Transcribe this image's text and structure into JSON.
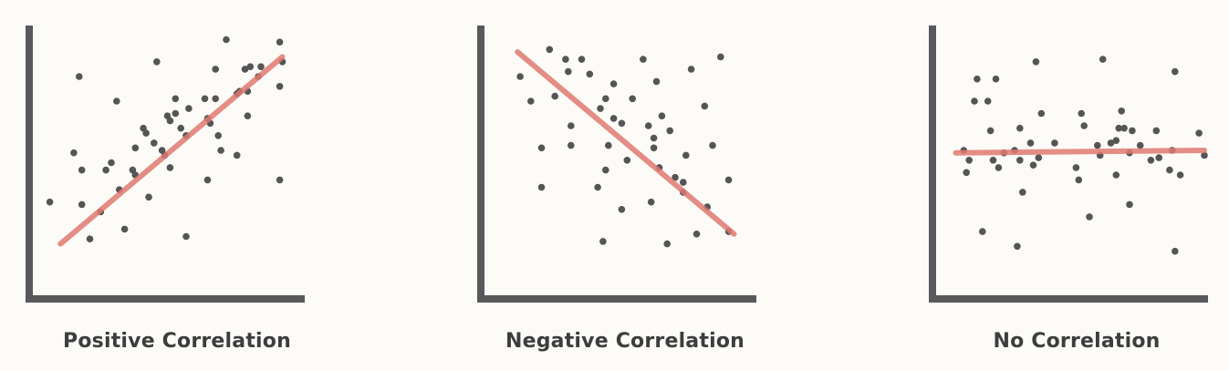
{
  "chart_data": [
    {
      "type": "scatter",
      "title": "Positive Correlation",
      "xlim": [
        0,
        100
      ],
      "ylim": [
        0,
        100
      ],
      "grid": false,
      "axes_color": "#58595b",
      "point_color": "#555555",
      "trend_color": "#e07a72",
      "trend_line": {
        "x": [
          10,
          93
        ],
        "y": [
          12,
          88
        ]
      },
      "points": [
        [
          6,
          29
        ],
        [
          17,
          80
        ],
        [
          15,
          49
        ],
        [
          18,
          42
        ],
        [
          18,
          28
        ],
        [
          21,
          14
        ],
        [
          25,
          25
        ],
        [
          27,
          42
        ],
        [
          29,
          45
        ],
        [
          31,
          70
        ],
        [
          32,
          34
        ],
        [
          34,
          18
        ],
        [
          37,
          42
        ],
        [
          38,
          51
        ],
        [
          38,
          40
        ],
        [
          41,
          59
        ],
        [
          42,
          57
        ],
        [
          43,
          31
        ],
        [
          45,
          53
        ],
        [
          46,
          86
        ],
        [
          48,
          50
        ],
        [
          49,
          48
        ],
        [
          50,
          64
        ],
        [
          51,
          62
        ],
        [
          51,
          43
        ],
        [
          53,
          71
        ],
        [
          53,
          65
        ],
        [
          55,
          59
        ],
        [
          57,
          15
        ],
        [
          57,
          56
        ],
        [
          58,
          67
        ],
        [
          64,
          71
        ],
        [
          65,
          63
        ],
        [
          65,
          38
        ],
        [
          66,
          61
        ],
        [
          68,
          71
        ],
        [
          68,
          83
        ],
        [
          69,
          56
        ],
        [
          70,
          50
        ],
        [
          72,
          95
        ],
        [
          76,
          73
        ],
        [
          76,
          48
        ],
        [
          77,
          74
        ],
        [
          79,
          83
        ],
        [
          80,
          64
        ],
        [
          80,
          74
        ],
        [
          81,
          84
        ],
        [
          84,
          80
        ],
        [
          85,
          84
        ],
        [
          92,
          38
        ],
        [
          92,
          94
        ],
        [
          92,
          76
        ],
        [
          93,
          86
        ]
      ]
    },
    {
      "type": "scatter",
      "title": "Negative Correlation",
      "xlim": [
        0,
        100
      ],
      "ylim": [
        0,
        100
      ],
      "grid": false,
      "axes_color": "#58595b",
      "point_color": "#555555",
      "trend_color": "#e07a72",
      "trend_line": {
        "x": [
          12,
          93
        ],
        "y": [
          90,
          16
        ]
      },
      "points": [
        [
          13,
          80
        ],
        [
          17,
          70
        ],
        [
          21,
          51
        ],
        [
          21,
          35
        ],
        [
          24,
          91
        ],
        [
          26,
          72
        ],
        [
          30,
          87
        ],
        [
          31,
          82
        ],
        [
          32,
          60
        ],
        [
          32,
          52
        ],
        [
          36,
          87
        ],
        [
          39,
          81
        ],
        [
          42,
          35
        ],
        [
          43,
          67
        ],
        [
          44,
          13
        ],
        [
          45,
          42
        ],
        [
          45,
          71
        ],
        [
          46,
          52
        ],
        [
          48,
          77
        ],
        [
          48,
          63
        ],
        [
          51,
          26
        ],
        [
          51,
          61
        ],
        [
          53,
          46
        ],
        [
          55,
          71
        ],
        [
          59,
          87
        ],
        [
          61,
          60
        ],
        [
          62,
          29
        ],
        [
          63,
          55
        ],
        [
          63,
          51
        ],
        [
          64,
          78
        ],
        [
          65,
          43
        ],
        [
          66,
          64
        ],
        [
          68,
          12
        ],
        [
          69,
          58
        ],
        [
          71,
          39
        ],
        [
          74,
          37
        ],
        [
          74,
          33
        ],
        [
          75,
          48
        ],
        [
          77,
          83
        ],
        [
          79,
          16
        ],
        [
          82,
          68
        ],
        [
          83,
          27
        ],
        [
          85,
          52
        ],
        [
          88,
          88
        ],
        [
          91,
          38
        ],
        [
          91,
          17
        ]
      ]
    },
    {
      "type": "scatter",
      "title": "No Correlation",
      "xlim": [
        0,
        100
      ],
      "ylim": [
        0,
        100
      ],
      "grid": false,
      "axes_color": "#58595b",
      "point_color": "#555555",
      "trend_color": "#e07a72",
      "trend_line": {
        "x": [
          7,
          100
        ],
        "y": [
          49,
          50
        ]
      },
      "points": [
        [
          10,
          50
        ],
        [
          11,
          41
        ],
        [
          12,
          46
        ],
        [
          14,
          70
        ],
        [
          15,
          79
        ],
        [
          17,
          17
        ],
        [
          19,
          70
        ],
        [
          20,
          58
        ],
        [
          21,
          46
        ],
        [
          22,
          79
        ],
        [
          23,
          43
        ],
        [
          25,
          49
        ],
        [
          29,
          50
        ],
        [
          30,
          11
        ],
        [
          31,
          46
        ],
        [
          31,
          59
        ],
        [
          32,
          33
        ],
        [
          35,
          53
        ],
        [
          36,
          44
        ],
        [
          37,
          86
        ],
        [
          38,
          47
        ],
        [
          39,
          65
        ],
        [
          44,
          53
        ],
        [
          52,
          43
        ],
        [
          53,
          38
        ],
        [
          54,
          65
        ],
        [
          55,
          60
        ],
        [
          57,
          23
        ],
        [
          60,
          52
        ],
        [
          61,
          48
        ],
        [
          62,
          87
        ],
        [
          65,
          53
        ],
        [
          67,
          54
        ],
        [
          67,
          40
        ],
        [
          68,
          59
        ],
        [
          69,
          66
        ],
        [
          70,
          59
        ],
        [
          72,
          49
        ],
        [
          72,
          28
        ],
        [
          73,
          58
        ],
        [
          76,
          52
        ],
        [
          80,
          46
        ],
        [
          82,
          58
        ],
        [
          83,
          47
        ],
        [
          87,
          42
        ],
        [
          88,
          50
        ],
        [
          89,
          82
        ],
        [
          89,
          9
        ],
        [
          91,
          40
        ],
        [
          98,
          57
        ],
        [
          100,
          48
        ]
      ]
    }
  ]
}
